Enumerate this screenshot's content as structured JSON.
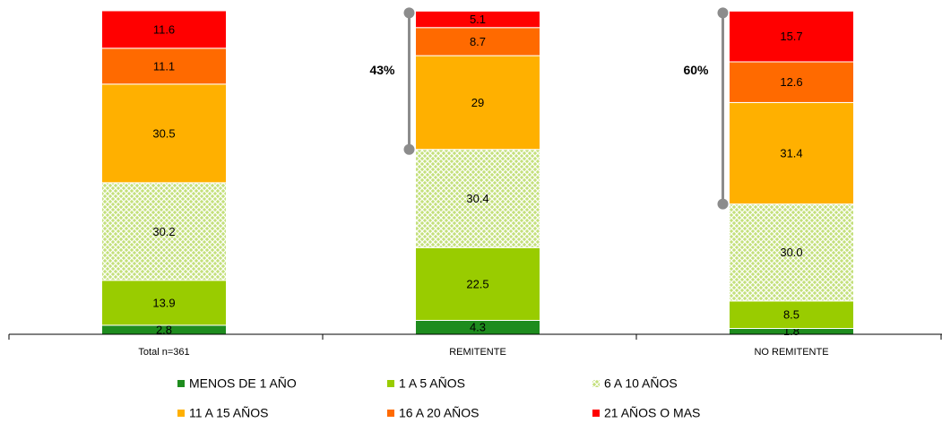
{
  "chart_data": {
    "type": "stacked_bar",
    "categories": [
      "Total n=361",
      "REMITENTE",
      "NO REMITENTE"
    ],
    "series": [
      {
        "name": "MENOS DE 1 AÑO",
        "color": "#1e8c1e",
        "values": [
          2.8,
          4.3,
          1.8
        ]
      },
      {
        "name": "1 A 5 AÑOS",
        "color": "#99cc00",
        "values": [
          13.9,
          22.5,
          8.5
        ]
      },
      {
        "name": "6 A 10 AÑOS",
        "color": "#c4e07c",
        "pattern": "dots",
        "values": [
          30.2,
          30.4,
          30.0
        ],
        "value_labels": [
          "30.2",
          "30.4",
          "30.0"
        ]
      },
      {
        "name": "11 A 15 AÑOS",
        "color": "#ffb000",
        "values": [
          30.5,
          29.0,
          31.4
        ]
      },
      {
        "name": "16 A 20 AÑOS",
        "color": "#ff6a00",
        "values": [
          11.1,
          8.7,
          12.6
        ]
      },
      {
        "name": "21 AÑOS O MAS",
        "color": "#ff0000",
        "values": [
          11.6,
          5.1,
          15.7
        ]
      }
    ],
    "annotations": [
      "43%",
      "60%"
    ]
  }
}
